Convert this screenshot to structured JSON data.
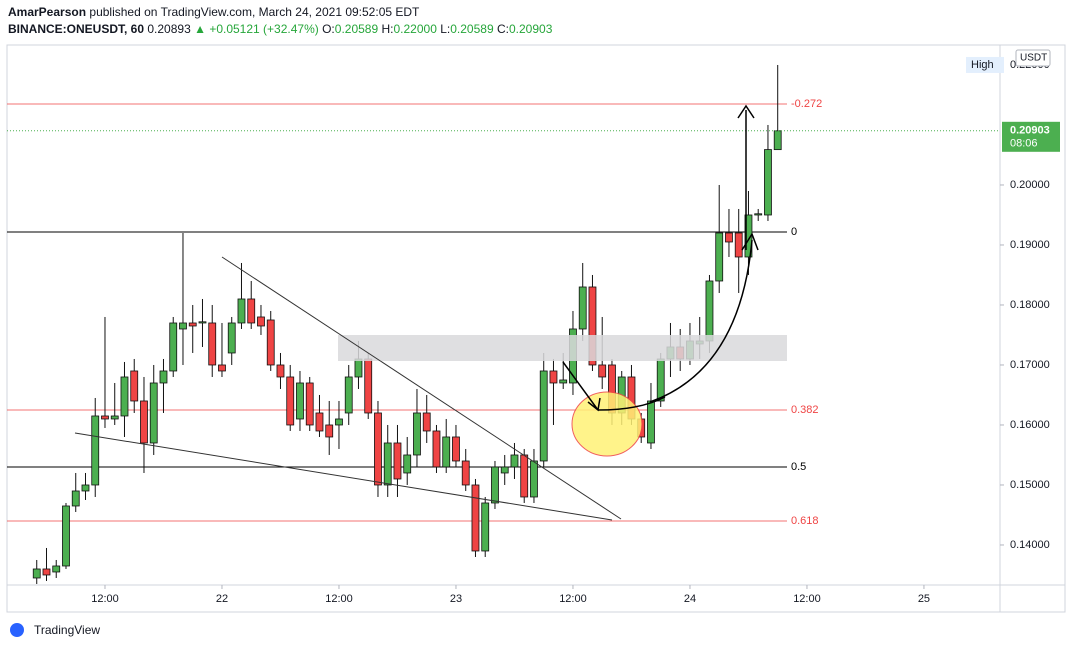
{
  "header": {
    "author": "AmarPearson",
    "published": "published on TradingView.com, March 24, 2021 09:52:05 EDT",
    "symbol": "BINANCE:ONEUSDT, 60",
    "last": "0.20893",
    "change": "▲ +0.05121 (+32.47%)",
    "ohlc": [
      {
        "key": "O:",
        "value": "0.20589"
      },
      {
        "key": "H:",
        "value": "0.22000"
      },
      {
        "key": "L:",
        "value": "0.20589"
      },
      {
        "key": "C:",
        "value": "0.20903"
      }
    ]
  },
  "footer": {
    "brand": "TradingView"
  },
  "chart_data": {
    "type": "candlestick",
    "currency": "USDT",
    "up_color": "#4caf50",
    "down_color": "#ef4444",
    "x": [
      5,
      6,
      7,
      8,
      9,
      10,
      11,
      12,
      13,
      14,
      15,
      16,
      17,
      18,
      19,
      20,
      21,
      22,
      23,
      24,
      25,
      26,
      27,
      28,
      29,
      30,
      31,
      32,
      33,
      34,
      35,
      36,
      37,
      38,
      39,
      40,
      41,
      42,
      43,
      44,
      45,
      46,
      47,
      48,
      49,
      50,
      51,
      52,
      53,
      54,
      55,
      56,
      57,
      58,
      59,
      60,
      61,
      62,
      63,
      64,
      65,
      66,
      67,
      68,
      69,
      70,
      71,
      72,
      73,
      74,
      75,
      76,
      77,
      78,
      79,
      80,
      81
    ],
    "open": [
      0.1345,
      0.136,
      0.1355,
      0.1365,
      0.1465,
      0.149,
      0.15,
      0.1615,
      0.161,
      0.1615,
      0.169,
      0.164,
      0.157,
      0.167,
      0.169,
      0.176,
      0.177,
      0.177,
      0.177,
      0.17,
      0.172,
      0.177,
      0.181,
      0.178,
      0.1775,
      0.17,
      0.168,
      0.161,
      0.167,
      0.162,
      0.16,
      0.16,
      0.162,
      0.168,
      0.171,
      0.162,
      0.15,
      0.157,
      0.152,
      0.155,
      0.162,
      0.159,
      0.153,
      0.158,
      0.154,
      0.15,
      0.139,
      0.147,
      0.152,
      0.153,
      0.155,
      0.148,
      0.154,
      0.169,
      0.167,
      0.167,
      0.176,
      0.183,
      0.17,
      0.17,
      0.162,
      0.168,
      0.161,
      0.157,
      0.164,
      0.171,
      0.173,
      0.171,
      0.1735,
      0.174,
      0.184,
      0.192,
      0.192,
      0.188,
      0.195,
      0.195,
      0.20589
    ],
    "high": [
      0.1375,
      0.1395,
      0.1375,
      0.147,
      0.152,
      0.152,
      0.1645,
      0.178,
      0.167,
      0.1705,
      0.171,
      0.168,
      0.17,
      0.171,
      0.178,
      0.192,
      0.18,
      0.181,
      0.18,
      0.177,
      0.178,
      0.187,
      0.184,
      0.18,
      0.179,
      0.172,
      0.17,
      0.169,
      0.168,
      0.165,
      0.164,
      0.164,
      0.17,
      0.174,
      0.172,
      0.164,
      0.16,
      0.16,
      0.158,
      0.166,
      0.165,
      0.16,
      0.161,
      0.16,
      0.156,
      0.151,
      0.148,
      0.154,
      0.155,
      0.157,
      0.156,
      0.156,
      0.172,
      0.171,
      0.172,
      0.179,
      0.187,
      0.185,
      0.178,
      0.171,
      0.169,
      0.17,
      0.162,
      0.167,
      0.172,
      0.177,
      0.176,
      0.177,
      0.178,
      0.185,
      0.2,
      0.196,
      0.196,
      0.199,
      0.196,
      0.21,
      0.22
    ],
    "low": [
      0.1335,
      0.134,
      0.1345,
      0.136,
      0.1455,
      0.1475,
      0.148,
      0.1595,
      0.16,
      0.158,
      0.162,
      0.152,
      0.155,
      0.162,
      0.168,
      0.17,
      0.172,
      0.173,
      0.168,
      0.168,
      0.17,
      0.176,
      0.176,
      0.175,
      0.169,
      0.166,
      0.159,
      0.159,
      0.159,
      0.158,
      0.155,
      0.156,
      0.16,
      0.166,
      0.161,
      0.148,
      0.148,
      0.148,
      0.15,
      0.153,
      0.157,
      0.152,
      0.152,
      0.153,
      0.149,
      0.138,
      0.138,
      0.146,
      0.15,
      0.151,
      0.147,
      0.147,
      0.153,
      0.16,
      0.166,
      0.165,
      0.174,
      0.169,
      0.166,
      0.16,
      0.16,
      0.16,
      0.157,
      0.156,
      0.163,
      0.168,
      0.169,
      0.17,
      0.171,
      0.172,
      0.182,
      0.188,
      0.182,
      0.185,
      0.194,
      0.194,
      0.20589
    ],
    "close": [
      0.136,
      0.135,
      0.1365,
      0.1465,
      0.149,
      0.15,
      0.1615,
      0.161,
      0.1615,
      0.168,
      0.164,
      0.157,
      0.167,
      0.169,
      0.177,
      0.177,
      0.1765,
      0.1772,
      0.17,
      0.169,
      0.177,
      0.181,
      0.177,
      0.1765,
      0.17,
      0.168,
      0.16,
      0.167,
      0.16,
      0.159,
      0.158,
      0.161,
      0.168,
      0.171,
      0.162,
      0.15,
      0.157,
      0.151,
      0.155,
      0.162,
      0.159,
      0.153,
      0.158,
      0.154,
      0.15,
      0.139,
      0.147,
      0.153,
      0.153,
      0.155,
      0.148,
      0.154,
      0.169,
      0.167,
      0.1675,
      0.176,
      0.183,
      0.17,
      0.168,
      0.162,
      0.168,
      0.161,
      0.158,
      0.164,
      0.171,
      0.173,
      0.171,
      0.174,
      0.174,
      0.184,
      0.192,
      0.1905,
      0.188,
      0.195,
      0.1952,
      0.2059,
      0.20903
    ],
    "xlim": [
      1.95,
      103.8
    ],
    "xticks": [
      {
        "value": 12,
        "label": "12:00"
      },
      {
        "value": 24,
        "label": "22"
      },
      {
        "value": 36,
        "label": "12:00"
      },
      {
        "value": 48,
        "label": "23"
      },
      {
        "value": 60,
        "label": "12:00"
      },
      {
        "value": 72,
        "label": "24"
      },
      {
        "value": 84,
        "label": "12:00"
      },
      {
        "value": 96,
        "label": "25"
      }
    ],
    "ylim": [
      0.13333,
      0.22333
    ],
    "yticks": [
      {
        "value": 0.14,
        "label": "0.14000"
      },
      {
        "value": 0.15,
        "label": "0.15000"
      },
      {
        "value": 0.16,
        "label": "0.16000"
      },
      {
        "value": 0.17,
        "label": "0.17000"
      },
      {
        "value": 0.18,
        "label": "0.18000"
      },
      {
        "value": 0.19,
        "label": "0.19000"
      },
      {
        "value": 0.2,
        "label": "0.20000"
      }
    ],
    "levels": [
      {
        "ratio": -0.272,
        "value": 0.2135,
        "color": "#ef4444"
      },
      {
        "ratio": 0,
        "value": 0.19217,
        "color": "#000000"
      },
      {
        "ratio": 0.382,
        "value": 0.1625,
        "color": "#ef4444"
      },
      {
        "ratio": 0.5,
        "value": 0.153,
        "color": "#000000"
      },
      {
        "ratio": 0.618,
        "value": 0.144,
        "color": "#ef4444"
      }
    ],
    "price_line": {
      "value": 0.20903,
      "label": "0.20903",
      "countdown": "08:06",
      "color": "#4caf50"
    },
    "high_marker": {
      "label": "High",
      "value": 0.22,
      "value_label": "0.22000"
    }
  }
}
